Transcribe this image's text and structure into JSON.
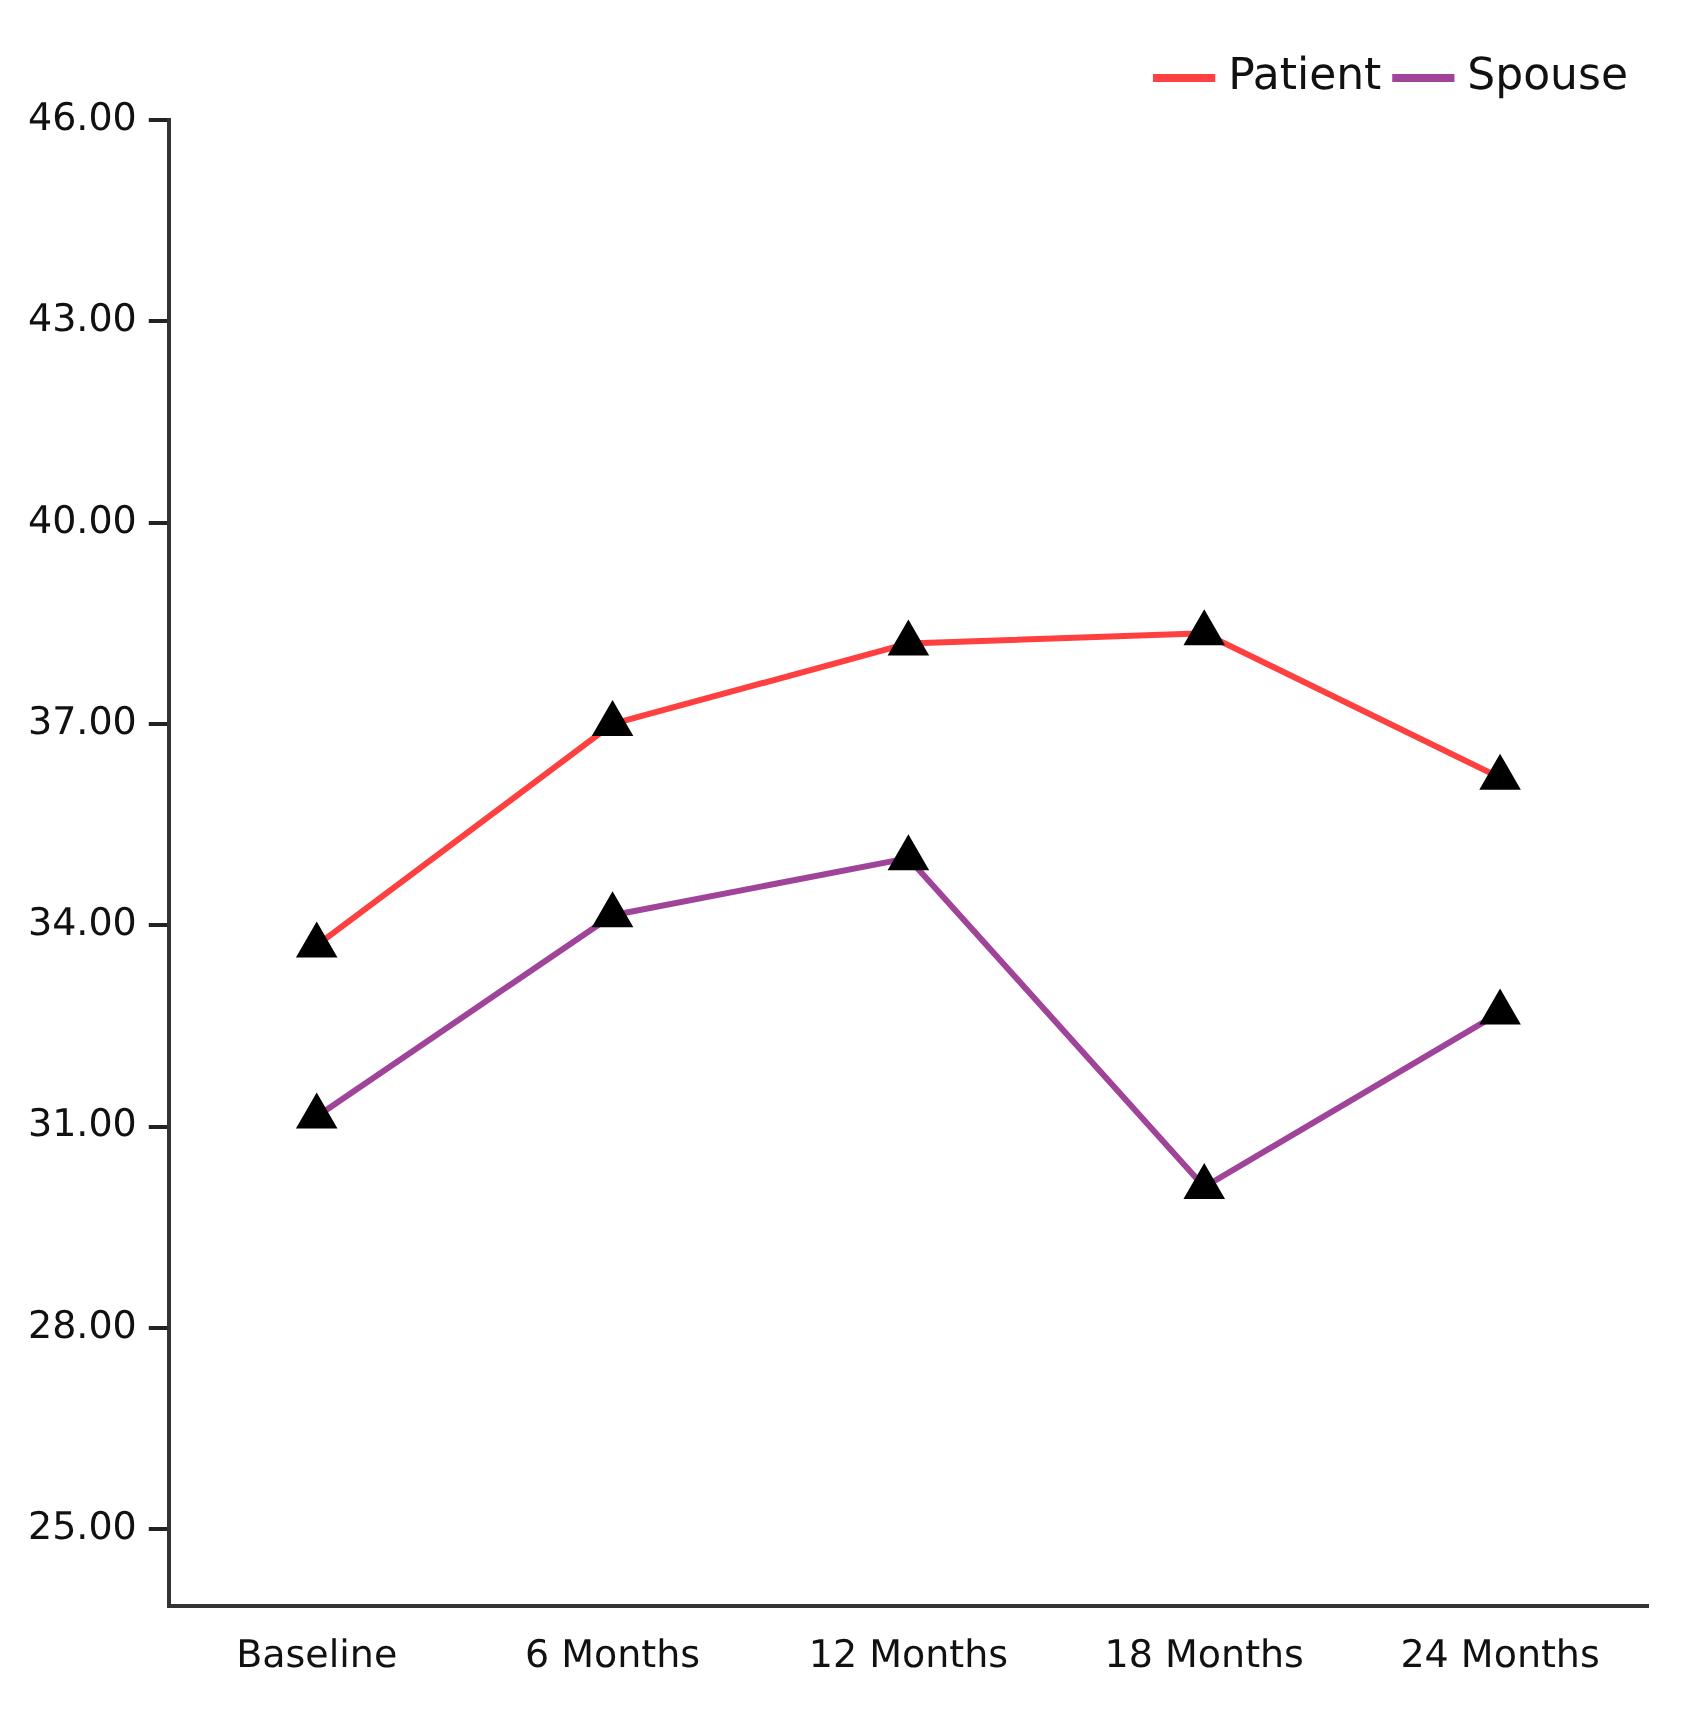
{
  "chart_data": {
    "type": "line",
    "categories": [
      "Baseline",
      "6 Months",
      "12 Months",
      "18 Months",
      "24 Months"
    ],
    "series": [
      {
        "name": "Patient",
        "color": "#ff4040",
        "values": [
          33.7,
          37.0,
          38.2,
          38.35,
          36.2
        ]
      },
      {
        "name": "Spouse",
        "color": "#a0449a",
        "values": [
          31.15,
          34.15,
          35.0,
          30.1,
          32.7
        ]
      }
    ],
    "ylim": [
      23.85,
      46
    ],
    "yticks": [
      {
        "value": 25,
        "label": "25.00"
      },
      {
        "value": 28,
        "label": "28.00"
      },
      {
        "value": 31,
        "label": "31.00"
      },
      {
        "value": 34,
        "label": "34.00"
      },
      {
        "value": 37,
        "label": "37.00"
      },
      {
        "value": 40,
        "label": "40.00"
      },
      {
        "value": 43,
        "label": "43.00"
      },
      {
        "value": 46,
        "label": "46.00"
      }
    ],
    "grid": false,
    "legend": "top right",
    "marker": "triangle",
    "line_style": "solid"
  }
}
